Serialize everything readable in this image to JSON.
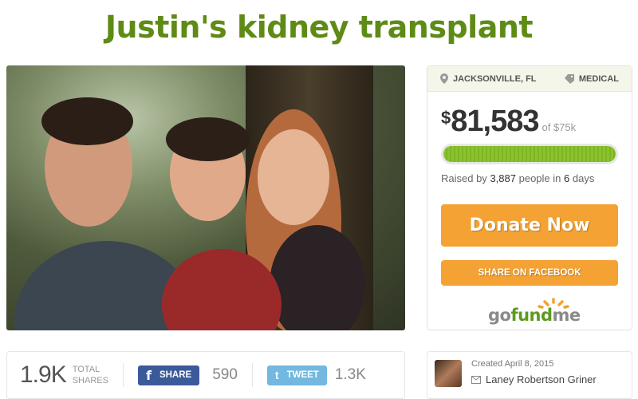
{
  "campaign": {
    "title": "Justin's kidney transplant",
    "location": "JACKSONVILLE, FL",
    "category": "MEDICAL"
  },
  "funding": {
    "currency": "$",
    "raised": "81,583",
    "goal_text": "of $75k",
    "progress_percent": 100,
    "raised_prefix": "Raised by",
    "donors": "3,887",
    "people_text": "people in",
    "days": "6",
    "days_text": "days"
  },
  "actions": {
    "donate_label": "Donate Now",
    "share_facebook_label": "SHARE ON FACEBOOK"
  },
  "brand": {
    "logo_go": "go",
    "logo_fund": "fund",
    "logo_me": "me",
    "accent": "#f3a233",
    "green": "#5e8b16"
  },
  "shares": {
    "total": "1.9K",
    "total_label_1": "TOTAL",
    "total_label_2": "SHARES",
    "fb_label": "SHARE",
    "fb_count": "590",
    "tw_label": "TWEET",
    "tw_count": "1.3K"
  },
  "organizer": {
    "created": "Created April 8, 2015",
    "name": "Laney Robertson Griner"
  }
}
